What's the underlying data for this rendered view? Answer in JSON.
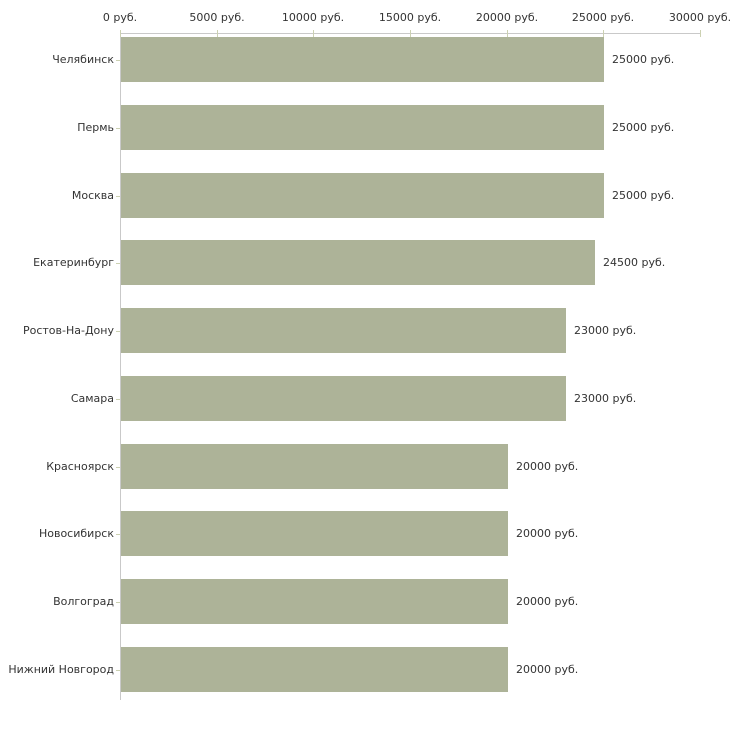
{
  "chart_data": {
    "type": "bar",
    "orientation": "horizontal",
    "title": "",
    "xlabel": "",
    "ylabel": "",
    "unit": "руб.",
    "categories": [
      "Челябинск",
      "Пермь",
      "Москва",
      "Екатеринбург",
      "Ростов-На-Дону",
      "Самара",
      "Красноярск",
      "Новосибирск",
      "Волгоград",
      "Нижний Новгород"
    ],
    "values": [
      25000,
      25000,
      25000,
      24500,
      23000,
      23000,
      20000,
      20000,
      20000,
      20000
    ],
    "value_labels": [
      "25000 руб.",
      "25000 руб.",
      "25000 руб.",
      "24500 руб.",
      "23000 руб.",
      "23000 руб.",
      "20000 руб.",
      "20000 руб.",
      "20000 руб.",
      "20000 руб."
    ],
    "x_axis": {
      "position": "top",
      "range": [
        0,
        30000
      ],
      "tick_values": [
        0,
        5000,
        10000,
        15000,
        20000,
        25000,
        30000
      ],
      "tick_labels": [
        "0 руб.",
        "5000 руб.",
        "10000 руб.",
        "15000 руб.",
        "20000 руб.",
        "25000 руб.",
        "30000 руб."
      ]
    },
    "legend": "none",
    "grid": "off",
    "colors": {
      "bar": "#adb398",
      "axis": "#c9c9c9",
      "tick": "#ccd1b2",
      "text": "#333333",
      "background": "#ffffff"
    }
  }
}
